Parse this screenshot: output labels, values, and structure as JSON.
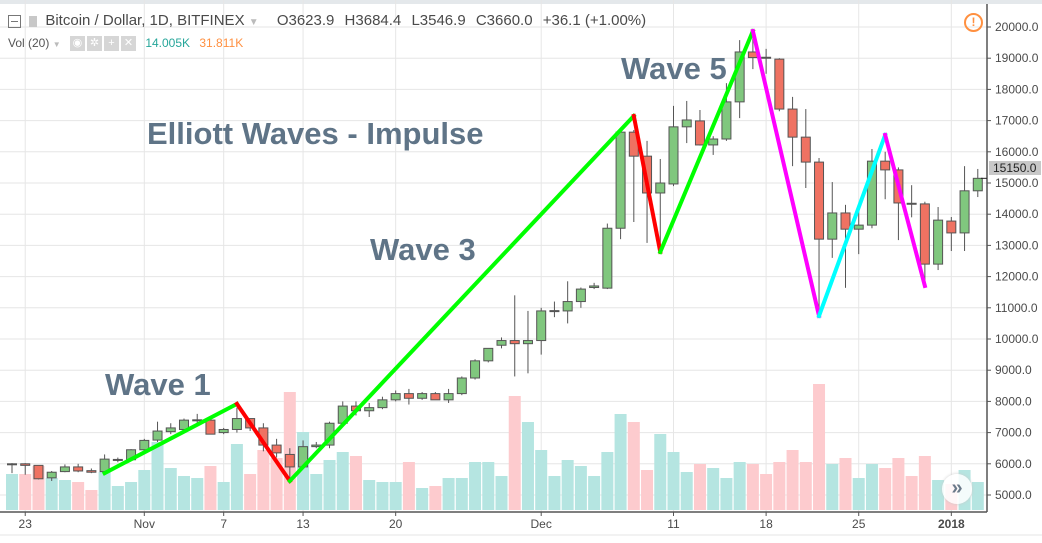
{
  "header": {
    "symbol": "Bitcoin / Dollar, 1D, BITFINEX",
    "open": "O3623.9",
    "high": "H3684.4",
    "low": "L3546.9",
    "close": "C3660.0",
    "change": "+36.1 (+1.00%)",
    "volume_label": "Vol (20)",
    "volume_value": "14.005K",
    "volume_ma": "31.811K",
    "volume_value_color": "#26a69a",
    "volume_ma_color": "#ff9040"
  },
  "icons": [
    "collapse-icon",
    "dropdown-icon",
    "eye-icon",
    "gear-icon",
    "plus-icon",
    "close-icon",
    "alert-icon",
    "scroll-right-icon"
  ],
  "annotations": {
    "title": "Elliott Waves - Impulse",
    "wave1": "Wave 1",
    "wave3": "Wave 3",
    "wave5": "Wave 5"
  },
  "chart_data": {
    "type": "candlestick",
    "title": "",
    "last_price_label": "15150.0",
    "ylim": [
      4500,
      20300
    ],
    "price_ticks": [
      "5000.0",
      "6000.0",
      "7000.0",
      "8000.0",
      "9000.0",
      "10000.0",
      "11000.0",
      "12000.0",
      "13000.0",
      "14000.0",
      "15000.0",
      "16000.0",
      "17000.0",
      "18000.0",
      "19000.0",
      "20000.0"
    ],
    "time_ticks": [
      {
        "date": "2017-10-23",
        "label": "23"
      },
      {
        "date": "2017-11-01",
        "label": "Nov"
      },
      {
        "date": "2017-11-07",
        "label": "7"
      },
      {
        "date": "2017-11-13",
        "label": "13"
      },
      {
        "date": "2017-11-20",
        "label": "20"
      },
      {
        "date": "2017-12-01",
        "label": "Dec"
      },
      {
        "date": "2017-12-11",
        "label": "11"
      },
      {
        "date": "2017-12-18",
        "label": "18"
      },
      {
        "date": "2017-12-25",
        "label": "25"
      },
      {
        "date": "2018-01-01",
        "label": "2018"
      }
    ],
    "grid": true,
    "colors": {
      "up": "#80c77e",
      "down": "#ef7262",
      "vol_up": "#b5e5e1",
      "vol_down": "#fdcbce",
      "wave_impulse": "#00ff00",
      "wave_corrective": "#ff0000",
      "wave_down": "#ff00ff",
      "wave_up_b": "#00ffff"
    },
    "start_date": "2017-10-22",
    "candles": [
      [
        6000,
        6020,
        5700,
        6000
      ],
      [
        6000,
        6020,
        5650,
        5950
      ],
      [
        5950,
        5950,
        5500,
        5520
      ],
      [
        5550,
        5770,
        5450,
        5730
      ],
      [
        5750,
        5980,
        5730,
        5900
      ],
      [
        5900,
        6000,
        5730,
        5770
      ],
      [
        5780,
        5850,
        5700,
        5730
      ],
      [
        5750,
        6300,
        5700,
        6150
      ],
      [
        6130,
        6200,
        6050,
        6140
      ],
      [
        6130,
        6470,
        6100,
        6450
      ],
      [
        6450,
        6800,
        6400,
        6750
      ],
      [
        6760,
        7350,
        6700,
        7050
      ],
      [
        7030,
        7300,
        6950,
        7150
      ],
      [
        7100,
        7450,
        7000,
        7400
      ],
      [
        7400,
        7600,
        7300,
        7410
      ],
      [
        7400,
        7420,
        6950,
        6950
      ],
      [
        7000,
        7150,
        6950,
        7100
      ],
      [
        7100,
        7800,
        7000,
        7450
      ],
      [
        7450,
        7450,
        7050,
        7150
      ],
      [
        7150,
        7300,
        6400,
        6600
      ],
      [
        6600,
        6800,
        6200,
        6350
      ],
      [
        6300,
        6500,
        5500,
        5900
      ],
      [
        5900,
        6750,
        5850,
        6550
      ],
      [
        6550,
        6700,
        6500,
        6600
      ],
      [
        6600,
        7350,
        6500,
        7300
      ],
      [
        7300,
        8000,
        7250,
        7850
      ],
      [
        7850,
        8000,
        7550,
        7700
      ],
      [
        7700,
        7950,
        7500,
        7800
      ],
      [
        7800,
        8150,
        7750,
        8050
      ],
      [
        8050,
        8350,
        8000,
        8250
      ],
      [
        8250,
        8400,
        7900,
        8100
      ],
      [
        8100,
        8300,
        8050,
        8250
      ],
      [
        8250,
        8300,
        8050,
        8050
      ],
      [
        8050,
        8400,
        7950,
        8250
      ],
      [
        8250,
        8800,
        8200,
        8750
      ],
      [
        8750,
        9350,
        8700,
        9300
      ],
      [
        9300,
        9700,
        9250,
        9700
      ],
      [
        9800,
        10050,
        9700,
        9950
      ],
      [
        9950,
        11400,
        8800,
        9850
      ],
      [
        9850,
        10900,
        8900,
        9950
      ],
      [
        9950,
        11000,
        9500,
        10900
      ],
      [
        10900,
        11200,
        10700,
        10910
      ],
      [
        10900,
        11850,
        10500,
        11200
      ],
      [
        11200,
        11650,
        11000,
        11600
      ],
      [
        11650,
        11800,
        11600,
        11700
      ],
      [
        11630,
        13700,
        11600,
        13550
      ],
      [
        13550,
        16630,
        13200,
        16630
      ],
      [
        16630,
        16700,
        13750,
        15860
      ],
      [
        15860,
        16350,
        13080,
        14680
      ],
      [
        14680,
        15770,
        12760,
        15000
      ],
      [
        14970,
        17470,
        14900,
        16800
      ],
      [
        16800,
        17630,
        16280,
        17020
      ],
      [
        16990,
        17340,
        16200,
        16220
      ],
      [
        16220,
        16500,
        15900,
        16410
      ],
      [
        16410,
        18200,
        16350,
        17600
      ],
      [
        17600,
        19580,
        17080,
        19200
      ],
      [
        19200,
        19900,
        18650,
        19020
      ],
      [
        19030,
        19300,
        18500,
        19000
      ],
      [
        18970,
        19000,
        17300,
        17370
      ],
      [
        17370,
        17760,
        15540,
        16470
      ],
      [
        16470,
        17370,
        14840,
        15670
      ],
      [
        15670,
        15800,
        10770,
        13200
      ],
      [
        13200,
        15030,
        12600,
        14040
      ],
      [
        14040,
        14300,
        11640,
        13520
      ],
      [
        13520,
        14200,
        12720,
        13650
      ],
      [
        13650,
        16090,
        13550,
        15700
      ],
      [
        15700,
        16000,
        14480,
        15420
      ],
      [
        15420,
        15500,
        13170,
        14360
      ],
      [
        14350,
        14930,
        13900,
        14330
      ],
      [
        14330,
        14400,
        11700,
        12400
      ],
      [
        12400,
        14230,
        12210,
        13810
      ],
      [
        13780,
        13910,
        12820,
        13400
      ],
      [
        13400,
        15540,
        12820,
        14750
      ],
      [
        14750,
        15450,
        14550,
        15150
      ]
    ],
    "volume_k": [
      18,
      18,
      22,
      16,
      15,
      14,
      10,
      19,
      12,
      14,
      20,
      34,
      21,
      17,
      16,
      22,
      14,
      33,
      18,
      30,
      26,
      59,
      39,
      18,
      25,
      29,
      27,
      15,
      14,
      14,
      24,
      11,
      12,
      16,
      16,
      24,
      24,
      17,
      57,
      44,
      30,
      17,
      25,
      22,
      17,
      29,
      48,
      44,
      20,
      38,
      29,
      19,
      23,
      21,
      16,
      24,
      23,
      18,
      24,
      30,
      24,
      63,
      23,
      26,
      16,
      23,
      21,
      26,
      17,
      27,
      15,
      13,
      20,
      14
    ],
    "waves": [
      {
        "from": [
          "2017-10-29",
          5700
        ],
        "to": [
          "2017-11-08",
          7920
        ],
        "color": "#00ff00"
      },
      {
        "from": [
          "2017-11-08",
          7920
        ],
        "to": [
          "2017-11-12",
          5450
        ],
        "color": "#ff0000"
      },
      {
        "from": [
          "2017-11-12",
          5450
        ],
        "to": [
          "2017-12-08",
          17150
        ],
        "color": "#00ff00"
      },
      {
        "from": [
          "2017-12-08",
          17150
        ],
        "to": [
          "2017-12-10",
          12790
        ],
        "color": "#ff0000"
      },
      {
        "from": [
          "2017-12-10",
          12790
        ],
        "to": [
          "2017-12-17",
          19870
        ],
        "color": "#00ff00"
      },
      {
        "from": [
          "2017-12-17",
          19870
        ],
        "to": [
          "2017-12-22",
          10740
        ],
        "color": "#ff00ff"
      },
      {
        "from": [
          "2017-12-22",
          10740
        ],
        "to": [
          "2017-12-27",
          16540
        ],
        "color": "#00ffff"
      },
      {
        "from": [
          "2017-12-27",
          16540
        ],
        "to": [
          "2017-12-30",
          11700
        ],
        "color": "#ff00ff"
      }
    ]
  }
}
